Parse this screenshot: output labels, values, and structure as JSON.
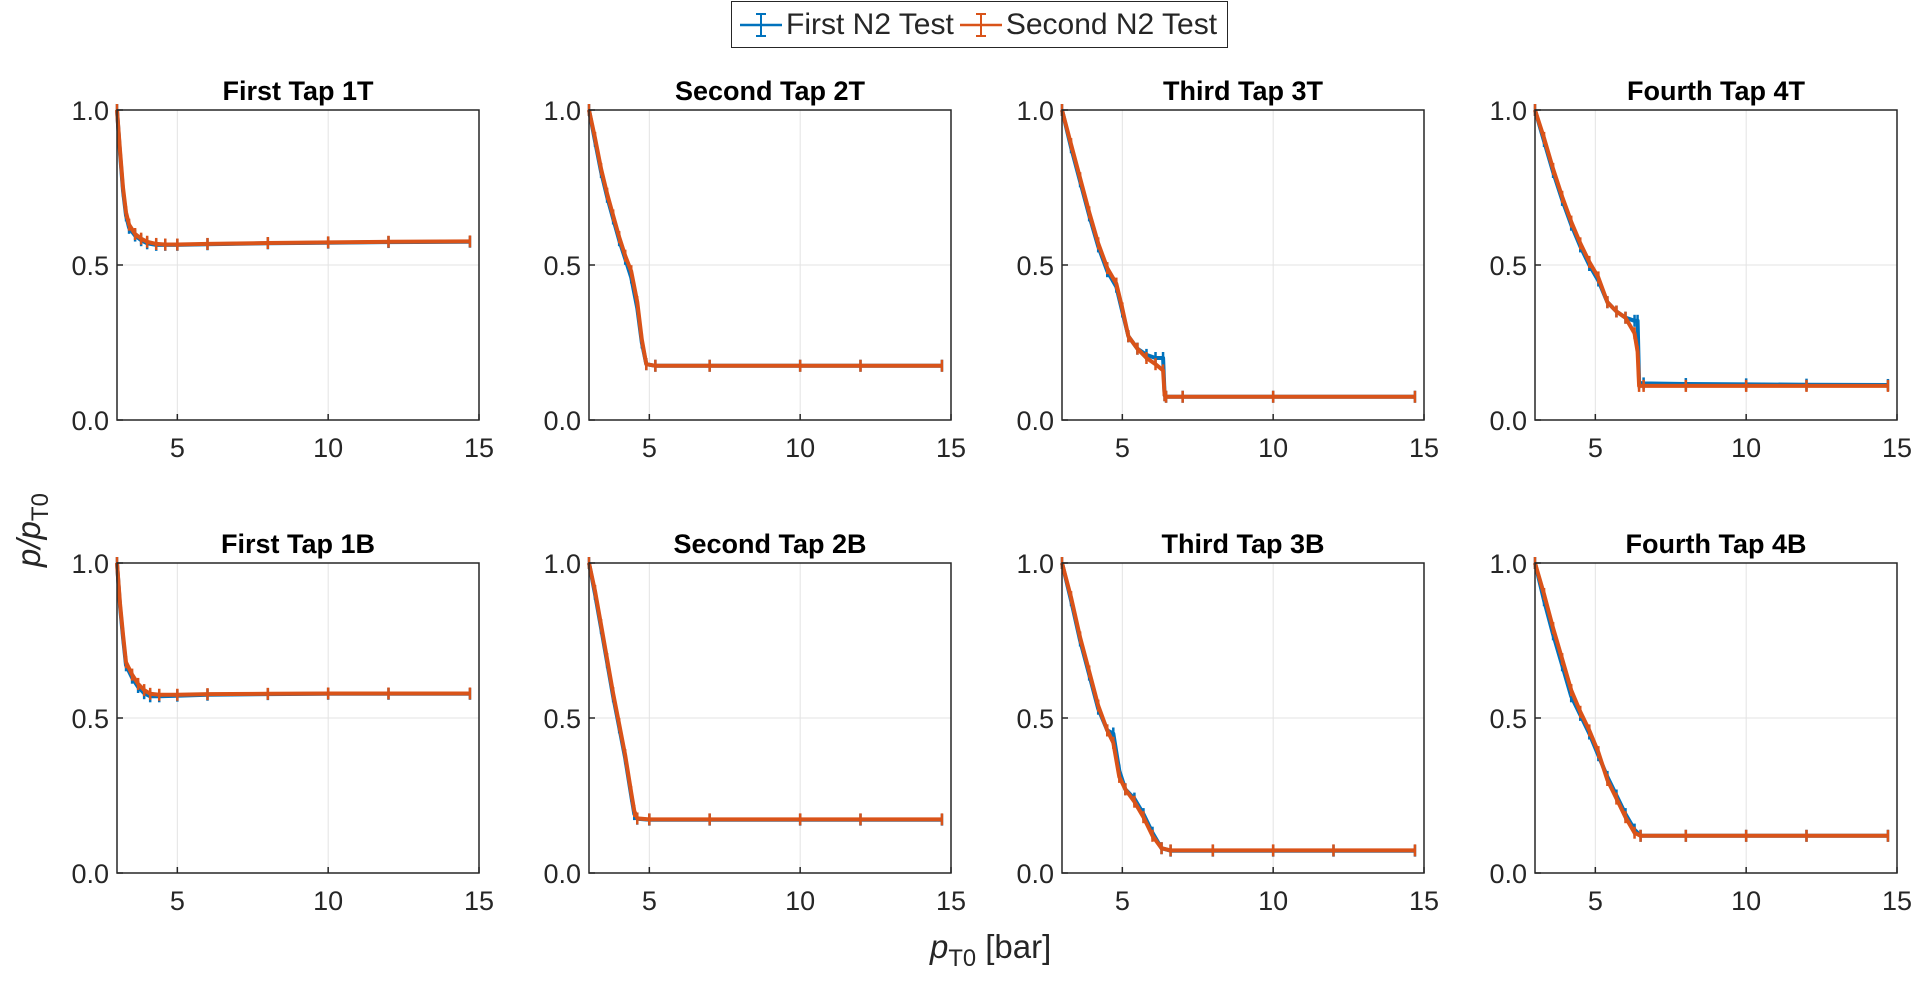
{
  "legend": {
    "items": [
      {
        "label": "First N2 Test",
        "color": "#0072BD"
      },
      {
        "label": "Second N2 Test",
        "color": "#D95319"
      }
    ]
  },
  "axis_labels": {
    "y_main": "p/p",
    "y_sub": "T0",
    "x_main": "p",
    "x_sub": "T0",
    "x_unit": " [bar]"
  },
  "chart_data": [
    {
      "type": "line",
      "title": "First Tap 1T",
      "xlim": [
        3,
        15
      ],
      "ylim": [
        0,
        1
      ],
      "xticks": [
        5,
        10,
        15
      ],
      "yticks": [
        "0.0",
        "0.5",
        "1.0"
      ],
      "grid": true,
      "series": [
        {
          "name": "First N2 Test",
          "x": [
            3.0,
            3.1,
            3.2,
            3.3,
            3.4,
            3.6,
            3.8,
            4.0,
            4.3,
            4.6,
            5,
            6,
            8,
            10,
            12,
            14.7
          ],
          "y": [
            1.0,
            0.86,
            0.74,
            0.66,
            0.62,
            0.595,
            0.58,
            0.57,
            0.565,
            0.565,
            0.565,
            0.567,
            0.57,
            0.572,
            0.574,
            0.575
          ]
        },
        {
          "name": "Second N2 Test",
          "x": [
            3.0,
            3.1,
            3.2,
            3.3,
            3.4,
            3.6,
            3.8,
            4.0,
            4.3,
            4.6,
            5,
            6,
            8,
            10,
            12,
            14.7
          ],
          "y": [
            1.0,
            0.87,
            0.75,
            0.67,
            0.63,
            0.6,
            0.585,
            0.575,
            0.568,
            0.566,
            0.566,
            0.568,
            0.571,
            0.573,
            0.575,
            0.576
          ]
        }
      ]
    },
    {
      "type": "line",
      "title": "Second Tap 2T",
      "xlim": [
        3,
        15
      ],
      "ylim": [
        0,
        1
      ],
      "xticks": [
        5,
        10,
        15
      ],
      "yticks": [
        "0.0",
        "0.5",
        "1.0"
      ],
      "grid": true,
      "series": [
        {
          "name": "First N2 Test",
          "x": [
            3.0,
            3.2,
            3.4,
            3.6,
            3.8,
            4.0,
            4.2,
            4.4,
            4.6,
            4.75,
            4.9,
            5.2,
            7,
            10,
            12,
            14.7
          ],
          "y": [
            1.0,
            0.9,
            0.8,
            0.72,
            0.65,
            0.58,
            0.52,
            0.46,
            0.36,
            0.25,
            0.18,
            0.175,
            0.175,
            0.175,
            0.175,
            0.175
          ]
        },
        {
          "name": "Second N2 Test",
          "x": [
            3.0,
            3.2,
            3.4,
            3.6,
            3.8,
            4.0,
            4.2,
            4.4,
            4.6,
            4.75,
            4.9,
            5.2,
            7,
            10,
            12,
            14.7
          ],
          "y": [
            1.0,
            0.91,
            0.81,
            0.73,
            0.66,
            0.59,
            0.53,
            0.48,
            0.38,
            0.26,
            0.18,
            0.175,
            0.175,
            0.175,
            0.175,
            0.175
          ]
        }
      ]
    },
    {
      "type": "line",
      "title": "Third Tap 3T",
      "xlim": [
        3,
        15
      ],
      "ylim": [
        0,
        1
      ],
      "xticks": [
        5,
        10,
        15
      ],
      "yticks": [
        "0.0",
        "0.5",
        "1.0"
      ],
      "grid": true,
      "series": [
        {
          "name": "First N2 Test",
          "x": [
            3.0,
            3.3,
            3.6,
            3.9,
            4.2,
            4.5,
            4.8,
            5.0,
            5.2,
            5.5,
            5.8,
            6.1,
            6.35,
            6.4,
            6.45,
            7,
            10,
            14.7
          ],
          "y": [
            1.0,
            0.88,
            0.77,
            0.66,
            0.56,
            0.48,
            0.43,
            0.35,
            0.27,
            0.23,
            0.21,
            0.2,
            0.2,
            0.08,
            0.075,
            0.075,
            0.075,
            0.075
          ]
        },
        {
          "name": "Second N2 Test",
          "x": [
            3.0,
            3.3,
            3.6,
            3.9,
            4.2,
            4.5,
            4.8,
            5.0,
            5.2,
            5.5,
            5.8,
            6.1,
            6.35,
            6.4,
            6.45,
            7,
            10,
            14.7
          ],
          "y": [
            1.0,
            0.89,
            0.78,
            0.67,
            0.57,
            0.49,
            0.44,
            0.36,
            0.27,
            0.23,
            0.2,
            0.18,
            0.16,
            0.08,
            0.075,
            0.075,
            0.075,
            0.075
          ]
        }
      ]
    },
    {
      "type": "line",
      "title": "Fourth Tap 4T",
      "xlim": [
        3,
        15
      ],
      "ylim": [
        0,
        1
      ],
      "xticks": [
        5,
        10,
        15
      ],
      "yticks": [
        "0.0",
        "0.5",
        "1.0"
      ],
      "grid": true,
      "series": [
        {
          "name": "First N2 Test",
          "x": [
            3.0,
            3.3,
            3.6,
            3.9,
            4.2,
            4.5,
            4.8,
            5.1,
            5.4,
            5.7,
            6.0,
            6.3,
            6.4,
            6.45,
            6.6,
            8,
            10,
            12,
            14.7
          ],
          "y": [
            1.0,
            0.9,
            0.8,
            0.71,
            0.63,
            0.56,
            0.5,
            0.45,
            0.38,
            0.35,
            0.33,
            0.32,
            0.32,
            0.12,
            0.118,
            0.116,
            0.115,
            0.114,
            0.113
          ]
        },
        {
          "name": "Second N2 Test",
          "x": [
            3.0,
            3.3,
            3.6,
            3.9,
            4.2,
            4.5,
            4.8,
            5.1,
            5.4,
            5.7,
            6.0,
            6.3,
            6.4,
            6.45,
            6.6,
            8,
            10,
            12,
            14.7
          ],
          "y": [
            1.0,
            0.91,
            0.81,
            0.72,
            0.64,
            0.57,
            0.51,
            0.46,
            0.38,
            0.35,
            0.33,
            0.28,
            0.22,
            0.11,
            0.11,
            0.11,
            0.11,
            0.11,
            0.11
          ]
        }
      ]
    },
    {
      "type": "line",
      "title": "First Tap 1B",
      "xlim": [
        3,
        15
      ],
      "ylim": [
        0,
        1
      ],
      "xticks": [
        5,
        10,
        15
      ],
      "yticks": [
        "0.0",
        "0.5",
        "1.0"
      ],
      "grid": true,
      "series": [
        {
          "name": "First N2 Test",
          "x": [
            3.0,
            3.1,
            3.2,
            3.3,
            3.5,
            3.7,
            3.9,
            4.1,
            4.4,
            5,
            6,
            8,
            10,
            12,
            14.7
          ],
          "y": [
            1.0,
            0.86,
            0.76,
            0.67,
            0.63,
            0.6,
            0.58,
            0.57,
            0.57,
            0.572,
            0.575,
            0.577,
            0.578,
            0.578,
            0.578
          ]
        },
        {
          "name": "Second N2 Test",
          "x": [
            3.0,
            3.1,
            3.2,
            3.3,
            3.5,
            3.7,
            3.9,
            4.1,
            4.4,
            5,
            6,
            8,
            10,
            12,
            14.7
          ],
          "y": [
            1.0,
            0.87,
            0.77,
            0.68,
            0.64,
            0.61,
            0.59,
            0.578,
            0.575,
            0.575,
            0.577,
            0.578,
            0.579,
            0.579,
            0.579
          ]
        }
      ]
    },
    {
      "type": "line",
      "title": "Second Tap 2B",
      "xlim": [
        3,
        15
      ],
      "ylim": [
        0,
        1
      ],
      "xticks": [
        5,
        10,
        15
      ],
      "yticks": [
        "0.0",
        "0.5",
        "1.0"
      ],
      "grid": true,
      "series": [
        {
          "name": "First N2 Test",
          "x": [
            3.0,
            3.2,
            3.4,
            3.6,
            3.8,
            4.0,
            4.2,
            4.4,
            4.5,
            4.6,
            5.0,
            7,
            10,
            12,
            14.7
          ],
          "y": [
            1.0,
            0.9,
            0.79,
            0.68,
            0.57,
            0.47,
            0.37,
            0.25,
            0.19,
            0.175,
            0.172,
            0.172,
            0.172,
            0.172,
            0.172
          ]
        },
        {
          "name": "Second N2 Test",
          "x": [
            3.0,
            3.2,
            3.4,
            3.6,
            3.8,
            4.0,
            4.2,
            4.4,
            4.5,
            4.6,
            5.0,
            7,
            10,
            12,
            14.7
          ],
          "y": [
            1.0,
            0.91,
            0.8,
            0.69,
            0.58,
            0.48,
            0.38,
            0.26,
            0.2,
            0.176,
            0.173,
            0.173,
            0.173,
            0.173,
            0.173
          ]
        }
      ]
    },
    {
      "type": "line",
      "title": "Third Tap 3B",
      "xlim": [
        3,
        15
      ],
      "ylim": [
        0,
        1
      ],
      "xticks": [
        5,
        10,
        15
      ],
      "yticks": [
        "0.0",
        "0.5",
        "1.0"
      ],
      "grid": true,
      "series": [
        {
          "name": "First N2 Test",
          "x": [
            3.0,
            3.3,
            3.6,
            3.9,
            4.2,
            4.5,
            4.7,
            4.9,
            5.1,
            5.4,
            5.7,
            6.0,
            6.3,
            6.6,
            8,
            10,
            12,
            14.7
          ],
          "y": [
            1.0,
            0.88,
            0.75,
            0.64,
            0.53,
            0.46,
            0.45,
            0.33,
            0.27,
            0.24,
            0.19,
            0.13,
            0.08,
            0.072,
            0.072,
            0.072,
            0.072,
            0.072
          ]
        },
        {
          "name": "Second N2 Test",
          "x": [
            3.0,
            3.3,
            3.6,
            3.9,
            4.2,
            4.5,
            4.7,
            4.9,
            5.1,
            5.4,
            5.7,
            6.0,
            6.3,
            6.6,
            8,
            10,
            12,
            14.7
          ],
          "y": [
            1.0,
            0.89,
            0.76,
            0.65,
            0.54,
            0.46,
            0.42,
            0.31,
            0.27,
            0.23,
            0.18,
            0.12,
            0.08,
            0.073,
            0.073,
            0.073,
            0.073,
            0.073
          ]
        }
      ]
    },
    {
      "type": "line",
      "title": "Fourth Tap 4B",
      "xlim": [
        3,
        15
      ],
      "ylim": [
        0,
        1
      ],
      "xticks": [
        5,
        10,
        15
      ],
      "yticks": [
        "0.0",
        "0.5",
        "1.0"
      ],
      "grid": true,
      "series": [
        {
          "name": "First N2 Test",
          "x": [
            3.0,
            3.3,
            3.6,
            3.9,
            4.2,
            4.5,
            4.8,
            5.1,
            5.4,
            5.7,
            6.0,
            6.3,
            6.5,
            8,
            10,
            12,
            14.7
          ],
          "y": [
            1.0,
            0.88,
            0.77,
            0.67,
            0.57,
            0.51,
            0.45,
            0.38,
            0.31,
            0.25,
            0.19,
            0.14,
            0.12,
            0.12,
            0.12,
            0.12,
            0.12
          ]
        },
        {
          "name": "Second N2 Test",
          "x": [
            3.0,
            3.3,
            3.6,
            3.9,
            4.2,
            4.5,
            4.8,
            5.1,
            5.4,
            5.7,
            6.0,
            6.3,
            6.5,
            8,
            10,
            12,
            14.7
          ],
          "y": [
            1.0,
            0.9,
            0.79,
            0.69,
            0.59,
            0.52,
            0.46,
            0.39,
            0.3,
            0.24,
            0.18,
            0.13,
            0.12,
            0.12,
            0.12,
            0.12,
            0.12
          ]
        }
      ]
    }
  ]
}
